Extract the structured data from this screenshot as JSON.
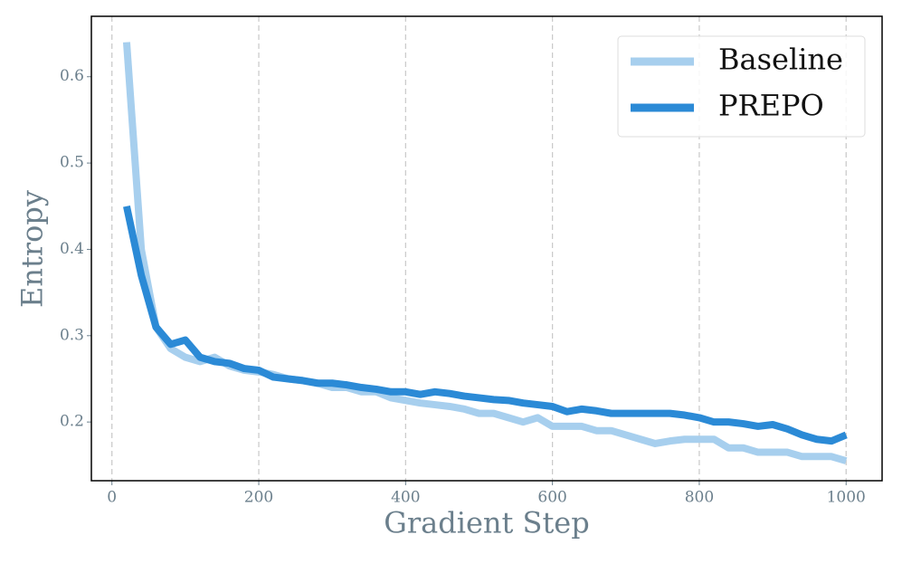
{
  "chart_data": {
    "type": "line",
    "xlabel": "Gradient Step",
    "ylabel": "Entropy",
    "x": [
      20,
      40,
      60,
      80,
      100,
      120,
      140,
      160,
      180,
      200,
      220,
      240,
      260,
      280,
      300,
      320,
      340,
      360,
      380,
      400,
      420,
      440,
      460,
      480,
      500,
      520,
      540,
      560,
      580,
      600,
      620,
      640,
      660,
      680,
      700,
      720,
      740,
      760,
      780,
      800,
      820,
      840,
      860,
      880,
      900,
      920,
      940,
      960,
      980,
      1000
    ],
    "series": [
      {
        "name": "Baseline",
        "color": "#a7cfee",
        "values": [
          0.64,
          0.4,
          0.31,
          0.285,
          0.275,
          0.27,
          0.275,
          0.265,
          0.26,
          0.258,
          0.255,
          0.25,
          0.248,
          0.245,
          0.24,
          0.24,
          0.235,
          0.235,
          0.228,
          0.225,
          0.222,
          0.22,
          0.218,
          0.215,
          0.21,
          0.21,
          0.205,
          0.2,
          0.205,
          0.195,
          0.195,
          0.195,
          0.19,
          0.19,
          0.185,
          0.18,
          0.175,
          0.178,
          0.18,
          0.18,
          0.18,
          0.17,
          0.17,
          0.165,
          0.165,
          0.165,
          0.16,
          0.16,
          0.16,
          0.155
        ]
      },
      {
        "name": "PREPO",
        "color": "#2b8ad6",
        "values": [
          0.45,
          0.37,
          0.31,
          0.29,
          0.295,
          0.275,
          0.27,
          0.268,
          0.262,
          0.26,
          0.252,
          0.25,
          0.248,
          0.245,
          0.245,
          0.243,
          0.24,
          0.238,
          0.235,
          0.235,
          0.232,
          0.235,
          0.233,
          0.23,
          0.228,
          0.226,
          0.225,
          0.222,
          0.22,
          0.218,
          0.212,
          0.215,
          0.213,
          0.21,
          0.21,
          0.21,
          0.21,
          0.21,
          0.208,
          0.205,
          0.2,
          0.2,
          0.198,
          0.195,
          0.197,
          0.192,
          0.185,
          0.18,
          0.178,
          0.185
        ]
      }
    ],
    "xlim": [
      -28,
      1049
    ],
    "ylim": [
      0.132,
      0.67
    ],
    "xticks": [
      0,
      200,
      400,
      600,
      800,
      1000
    ],
    "yticks": [
      0.2,
      0.3,
      0.4,
      0.5,
      0.6
    ],
    "grid": "x",
    "legend": "upper right"
  }
}
